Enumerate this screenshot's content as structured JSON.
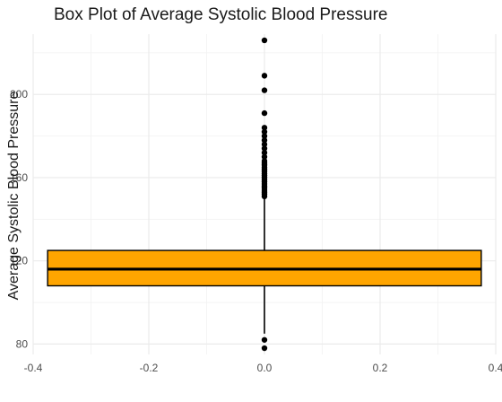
{
  "chart_data": {
    "type": "box",
    "title": "Box Plot of Average Systolic Blood Pressure",
    "xlabel": "",
    "ylabel": "Average Systolic Blood Pressure",
    "xlim": [
      -0.4,
      0.4
    ],
    "ylim": [
      75,
      229
    ],
    "x_ticks": [
      -0.4,
      -0.2,
      0.0,
      0.2,
      0.4
    ],
    "x_tick_labels": [
      "-0.4",
      "-0.2",
      "0.0",
      "0.2",
      "0.4"
    ],
    "y_ticks": [
      80,
      120,
      160,
      200
    ],
    "y_tick_labels": [
      "80",
      "120",
      "160",
      "200"
    ],
    "grid": true,
    "box": {
      "x_center": 0.0,
      "x_left": -0.375,
      "x_right": 0.375,
      "q1": 108,
      "median": 116,
      "q3": 125,
      "whisker_low": 85,
      "whisker_high": 151,
      "fill": "#FFA500"
    },
    "outliers": [
      78,
      82,
      151,
      152,
      153,
      154,
      155,
      156,
      157,
      158,
      159,
      160,
      161,
      162,
      163,
      164,
      165,
      166,
      167,
      168,
      170,
      172,
      174,
      176,
      178,
      180,
      182,
      184,
      191,
      202,
      209,
      226
    ]
  }
}
